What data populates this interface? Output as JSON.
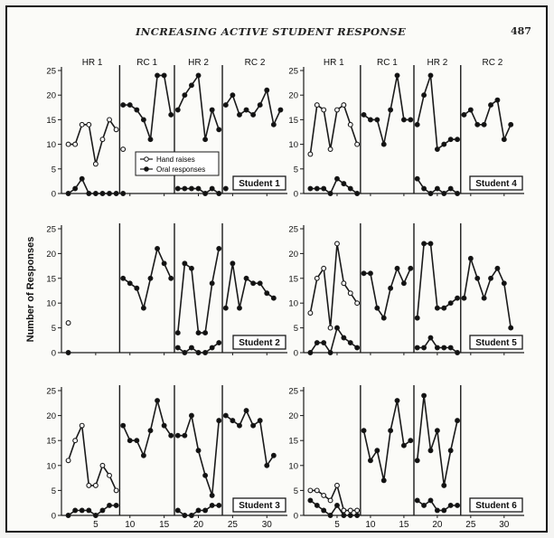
{
  "header": {
    "running_title": "INCREASING ACTIVE STUDENT RESPONSE",
    "page_number": "487"
  },
  "colors": {
    "line": "#1a1a1a",
    "hand_marker_fill": "#ffffff",
    "oral_marker_fill": "#111111",
    "background": "#fbfbf8"
  },
  "chart_data": {
    "type": "line",
    "ylabel": "Number of Responses",
    "xlim": [
      0,
      33
    ],
    "ylim": [
      0,
      25
    ],
    "x_ticks": [
      "5",
      "10",
      "15",
      "20",
      "25",
      "30"
    ],
    "y_ticks": [
      "0",
      "5",
      "10",
      "15",
      "20",
      "25"
    ],
    "phases": [
      "HR 1",
      "RC 1",
      "HR 2",
      "RC 2"
    ],
    "phase_lines": [
      8.5,
      16.5,
      23.5
    ],
    "legend": {
      "hand": "Hand raises",
      "oral": "Oral responses"
    },
    "students": [
      {
        "name": "Student 1",
        "hand_raises": [
          [
            1,
            10
          ],
          [
            2,
            10
          ],
          [
            3,
            14
          ],
          [
            4,
            14
          ],
          [
            5,
            6
          ],
          [
            6,
            11
          ],
          [
            7,
            15
          ],
          [
            8,
            13
          ],
          [
            9,
            9
          ]
        ],
        "oral_responses": [
          [
            1,
            0
          ],
          [
            2,
            1
          ],
          [
            3,
            3
          ],
          [
            4,
            0
          ],
          [
            5,
            0
          ],
          [
            6,
            0
          ],
          [
            7,
            0
          ],
          [
            8,
            0
          ],
          [
            9,
            0
          ]
        ],
        "combined": [
          [
            9,
            18
          ],
          [
            10,
            18
          ],
          [
            11,
            17
          ],
          [
            12,
            15
          ],
          [
            13,
            11
          ],
          [
            14,
            24
          ],
          [
            15,
            24
          ],
          [
            16,
            16
          ],
          [
            17,
            17
          ],
          [
            18,
            20
          ],
          [
            19,
            22
          ],
          [
            20,
            24
          ],
          [
            21,
            11
          ],
          [
            22,
            17
          ],
          [
            23,
            13
          ],
          [
            24,
            18
          ],
          [
            25,
            20
          ],
          [
            26,
            16
          ],
          [
            27,
            17
          ],
          [
            28,
            16
          ],
          [
            29,
            18
          ],
          [
            30,
            21
          ],
          [
            31,
            14
          ],
          [
            32,
            17
          ]
        ],
        "oral_later": [
          [
            17,
            1
          ],
          [
            18,
            1
          ],
          [
            19,
            1
          ],
          [
            20,
            1
          ],
          [
            21,
            0
          ],
          [
            22,
            1
          ],
          [
            23,
            0
          ],
          [
            24,
            1
          ]
        ]
      },
      {
        "name": "Student 4",
        "hand_raises": [
          [
            1,
            8
          ],
          [
            2,
            18
          ],
          [
            3,
            17
          ],
          [
            4,
            9
          ],
          [
            5,
            17
          ],
          [
            6,
            18
          ],
          [
            7,
            14
          ],
          [
            8,
            10
          ]
        ],
        "oral_responses": [
          [
            1,
            1
          ],
          [
            2,
            1
          ],
          [
            3,
            1
          ],
          [
            4,
            0
          ],
          [
            5,
            3
          ],
          [
            6,
            2
          ],
          [
            7,
            1
          ],
          [
            8,
            0
          ]
        ],
        "combined": [
          [
            9,
            16
          ],
          [
            10,
            15
          ],
          [
            11,
            15
          ],
          [
            12,
            10
          ],
          [
            13,
            17
          ],
          [
            14,
            24
          ],
          [
            15,
            15
          ],
          [
            16,
            15
          ],
          [
            17,
            14
          ],
          [
            18,
            20
          ],
          [
            19,
            24
          ],
          [
            20,
            9
          ],
          [
            21,
            10
          ],
          [
            22,
            11
          ],
          [
            23,
            11
          ],
          [
            24,
            16
          ],
          [
            25,
            17
          ],
          [
            26,
            14
          ],
          [
            27,
            14
          ],
          [
            28,
            18
          ],
          [
            29,
            19
          ],
          [
            30,
            11
          ],
          [
            31,
            14
          ]
        ],
        "oral_later": [
          [
            17,
            3
          ],
          [
            18,
            1
          ],
          [
            19,
            0
          ],
          [
            20,
            1
          ],
          [
            21,
            0
          ],
          [
            22,
            1
          ],
          [
            23,
            0
          ]
        ]
      },
      {
        "name": "Student 2",
        "hand_raises": [
          [
            1,
            6
          ]
        ],
        "oral_responses": [
          [
            1,
            0
          ]
        ],
        "combined": [
          [
            9,
            15
          ],
          [
            10,
            14
          ],
          [
            11,
            13
          ],
          [
            12,
            9
          ],
          [
            13,
            15
          ],
          [
            14,
            21
          ],
          [
            15,
            18
          ],
          [
            16,
            15
          ],
          [
            17,
            4
          ],
          [
            18,
            18
          ],
          [
            19,
            17
          ],
          [
            20,
            4
          ],
          [
            21,
            4
          ],
          [
            22,
            14
          ],
          [
            23,
            21
          ],
          [
            24,
            9
          ],
          [
            25,
            18
          ],
          [
            26,
            9
          ],
          [
            27,
            15
          ],
          [
            28,
            14
          ],
          [
            29,
            14
          ],
          [
            30,
            12
          ],
          [
            31,
            11
          ]
        ],
        "oral_later": [
          [
            17,
            1
          ],
          [
            18,
            0
          ],
          [
            19,
            1
          ],
          [
            20,
            0
          ],
          [
            21,
            0
          ],
          [
            22,
            1
          ],
          [
            23,
            2
          ]
        ]
      },
      {
        "name": "Student 5",
        "hand_raises": [
          [
            1,
            8
          ],
          [
            2,
            15
          ],
          [
            3,
            17
          ],
          [
            4,
            5
          ],
          [
            5,
            22
          ],
          [
            6,
            14
          ],
          [
            7,
            12
          ],
          [
            8,
            10
          ]
        ],
        "oral_responses": [
          [
            1,
            0
          ],
          [
            2,
            2
          ],
          [
            3,
            2
          ],
          [
            4,
            0
          ],
          [
            5,
            5
          ],
          [
            6,
            3
          ],
          [
            7,
            2
          ],
          [
            8,
            1
          ]
        ],
        "combined": [
          [
            9,
            16
          ],
          [
            10,
            16
          ],
          [
            11,
            9
          ],
          [
            12,
            7
          ],
          [
            13,
            13
          ],
          [
            14,
            17
          ],
          [
            15,
            14
          ],
          [
            16,
            17
          ],
          [
            17,
            7
          ],
          [
            18,
            22
          ],
          [
            19,
            22
          ],
          [
            20,
            9
          ],
          [
            21,
            9
          ],
          [
            22,
            10
          ],
          [
            23,
            11
          ],
          [
            24,
            11
          ],
          [
            25,
            19
          ],
          [
            26,
            15
          ],
          [
            27,
            11
          ],
          [
            28,
            15
          ],
          [
            29,
            17
          ],
          [
            30,
            14
          ],
          [
            31,
            5
          ]
        ],
        "oral_later": [
          [
            17,
            1
          ],
          [
            18,
            1
          ],
          [
            19,
            3
          ],
          [
            20,
            1
          ],
          [
            21,
            1
          ],
          [
            22,
            1
          ],
          [
            23,
            0
          ]
        ]
      },
      {
        "name": "Student 3",
        "hand_raises": [
          [
            1,
            11
          ],
          [
            2,
            15
          ],
          [
            3,
            18
          ],
          [
            4,
            6
          ],
          [
            5,
            6
          ],
          [
            6,
            10
          ],
          [
            7,
            8
          ],
          [
            8,
            5
          ]
        ],
        "oral_responses": [
          [
            1,
            0
          ],
          [
            2,
            1
          ],
          [
            3,
            1
          ],
          [
            4,
            1
          ],
          [
            5,
            0
          ],
          [
            6,
            1
          ],
          [
            7,
            2
          ],
          [
            8,
            2
          ]
        ],
        "combined": [
          [
            9,
            18
          ],
          [
            10,
            15
          ],
          [
            11,
            15
          ],
          [
            12,
            12
          ],
          [
            13,
            17
          ],
          [
            14,
            23
          ],
          [
            15,
            18
          ],
          [
            16,
            16
          ],
          [
            17,
            16
          ],
          [
            18,
            16
          ],
          [
            19,
            20
          ],
          [
            20,
            13
          ],
          [
            21,
            8
          ],
          [
            22,
            4
          ],
          [
            23,
            19
          ],
          [
            24,
            20
          ],
          [
            25,
            19
          ],
          [
            26,
            18
          ],
          [
            27,
            21
          ],
          [
            28,
            18
          ],
          [
            29,
            19
          ],
          [
            30,
            10
          ],
          [
            31,
            12
          ]
        ],
        "oral_later": [
          [
            17,
            1
          ],
          [
            18,
            0
          ],
          [
            19,
            0
          ],
          [
            20,
            1
          ],
          [
            21,
            1
          ],
          [
            22,
            2
          ],
          [
            23,
            2
          ]
        ]
      },
      {
        "name": "Student 6",
        "hand_raises": [
          [
            1,
            5
          ],
          [
            2,
            5
          ],
          [
            3,
            4
          ],
          [
            4,
            3
          ],
          [
            5,
            6
          ],
          [
            6,
            1
          ],
          [
            7,
            1
          ],
          [
            8,
            1
          ]
        ],
        "oral_responses": [
          [
            1,
            3
          ],
          [
            2,
            2
          ],
          [
            3,
            1
          ],
          [
            4,
            0
          ],
          [
            5,
            2
          ],
          [
            6,
            0
          ],
          [
            7,
            0
          ],
          [
            8,
            0
          ]
        ],
        "combined": [
          [
            9,
            17
          ],
          [
            10,
            11
          ],
          [
            11,
            13
          ],
          [
            12,
            7
          ],
          [
            13,
            17
          ],
          [
            14,
            23
          ],
          [
            15,
            14
          ],
          [
            16,
            15
          ],
          [
            17,
            11
          ],
          [
            18,
            24
          ],
          [
            19,
            13
          ],
          [
            20,
            17
          ],
          [
            21,
            6
          ],
          [
            22,
            13
          ],
          [
            23,
            19
          ]
        ],
        "oral_later": [
          [
            17,
            3
          ],
          [
            18,
            2
          ],
          [
            19,
            3
          ],
          [
            20,
            1
          ],
          [
            21,
            1
          ],
          [
            22,
            2
          ],
          [
            23,
            2
          ]
        ]
      }
    ]
  }
}
